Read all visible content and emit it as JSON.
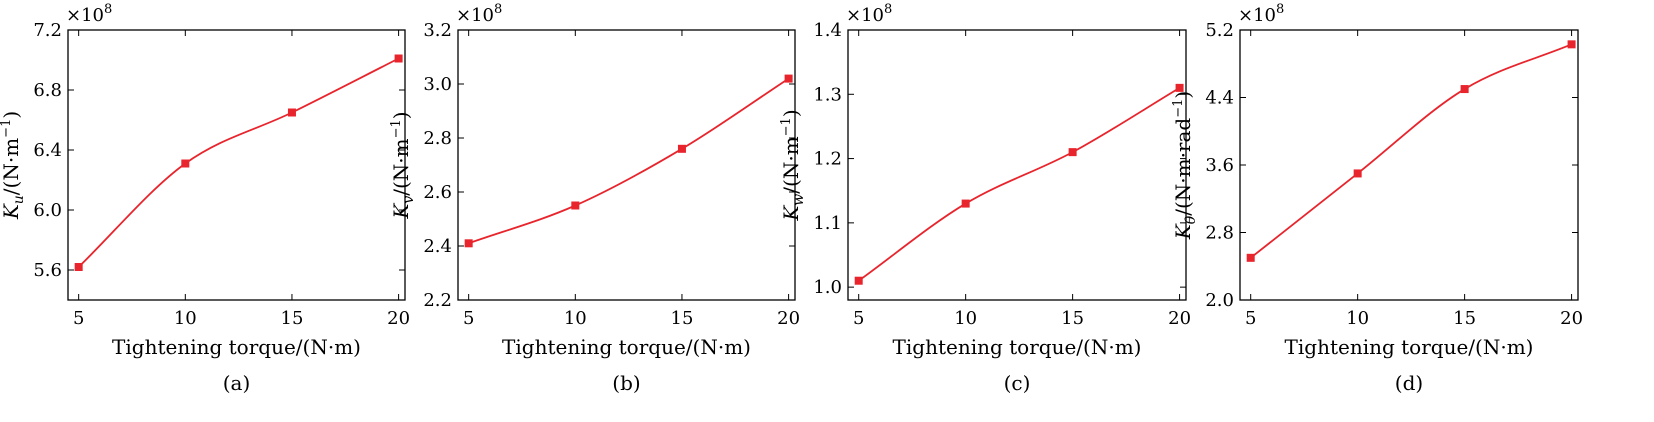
{
  "chart_data": [
    {
      "type": "line",
      "caption": "(a)",
      "xlabel": "Tightening torque/(N·m)",
      "ylabel": {
        "sym": "K",
        "sub": "u",
        "unit": "/(N·m",
        "sup": "−1",
        "close": ")"
      },
      "multiplier": "×10",
      "multiplier_exp": "8",
      "xlim": [
        4.5,
        20.3
      ],
      "ylim": [
        5.4,
        7.2
      ],
      "xticks": [
        5,
        10,
        15,
        20
      ],
      "xtick_labels": [
        "5",
        "10",
        "15",
        "20"
      ],
      "yticks": [
        5.6,
        6.0,
        6.4,
        6.8,
        7.2
      ],
      "ytick_labels": [
        "5.6",
        "6.0",
        "6.4",
        "6.8",
        "7.2"
      ],
      "series": [
        {
          "x": [
            5,
            10,
            15,
            20
          ],
          "y": [
            5.62,
            6.31,
            6.65,
            7.01
          ],
          "color": "#e8242c"
        }
      ]
    },
    {
      "type": "line",
      "caption": "(b)",
      "xlabel": "Tightening torque/(N·m)",
      "ylabel": {
        "sym": "K",
        "sub": "v",
        "unit": "/(N·m",
        "sup": "−1",
        "close": ")"
      },
      "multiplier": "×10",
      "multiplier_exp": "8",
      "xlim": [
        4.5,
        20.3
      ],
      "ylim": [
        2.2,
        3.2
      ],
      "xticks": [
        5,
        10,
        15,
        20
      ],
      "xtick_labels": [
        "5",
        "10",
        "15",
        "20"
      ],
      "yticks": [
        2.2,
        2.4,
        2.6,
        2.8,
        3.0,
        3.2
      ],
      "ytick_labels": [
        "2.2",
        "2.4",
        "2.6",
        "2.8",
        "3.0",
        "3.2"
      ],
      "series": [
        {
          "x": [
            5,
            10,
            15,
            20
          ],
          "y": [
            2.41,
            2.55,
            2.76,
            3.02
          ],
          "color": "#e8242c"
        }
      ]
    },
    {
      "type": "line",
      "caption": "(c)",
      "xlabel": "Tightening torque/(N·m)",
      "ylabel": {
        "sym": "K",
        "sub": "w",
        "unit": "/(N·m",
        "sup": "−1",
        "close": ")"
      },
      "multiplier": "×10",
      "multiplier_exp": "8",
      "xlim": [
        4.5,
        20.3
      ],
      "ylim": [
        0.98,
        1.4
      ],
      "xticks": [
        5,
        10,
        15,
        20
      ],
      "xtick_labels": [
        "5",
        "10",
        "15",
        "20"
      ],
      "yticks": [
        1.0,
        1.1,
        1.2,
        1.3,
        1.4
      ],
      "ytick_labels": [
        "1.0",
        "1.1",
        "1.2",
        "1.3",
        "1.4"
      ],
      "series": [
        {
          "x": [
            5,
            10,
            15,
            20
          ],
          "y": [
            1.01,
            1.13,
            1.21,
            1.31
          ],
          "color": "#e8242c"
        }
      ]
    },
    {
      "type": "line",
      "caption": "(d)",
      "xlabel": "Tightening torque/(N·m)",
      "ylabel": {
        "sym": "K",
        "sub": "θ",
        "unit": "/(N·m·rad",
        "sup": "−1",
        "close": ")"
      },
      "multiplier": "×10",
      "multiplier_exp": "8",
      "xlim": [
        4.5,
        20.3
      ],
      "ylim": [
        2.0,
        5.2
      ],
      "xticks": [
        5,
        10,
        15,
        20
      ],
      "xtick_labels": [
        "5",
        "10",
        "15",
        "20"
      ],
      "yticks": [
        2.0,
        2.8,
        3.6,
        4.4,
        5.2
      ],
      "ytick_labels": [
        "2.0",
        "2.8",
        "3.6",
        "4.4",
        "5.2"
      ],
      "series": [
        {
          "x": [
            5,
            10,
            15,
            20
          ],
          "y": [
            2.5,
            3.5,
            4.5,
            5.03
          ],
          "color": "#e8242c"
        }
      ]
    }
  ]
}
